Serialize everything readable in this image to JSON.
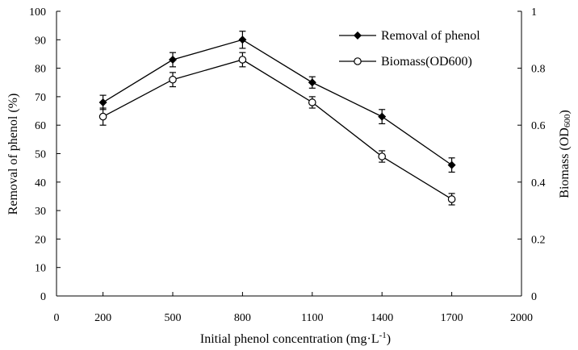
{
  "chart_data": {
    "type": "line",
    "title": "",
    "xlabel": "Initial phenol concentration (mg·L",
    "xlabel_sup": "-1",
    "xlabel_tail": ")",
    "ylabel": "Removal of phenol (%)",
    "y2label": "Biomass (OD",
    "y2label_sub": "600",
    "y2label_tail": ")",
    "xlim": [
      0,
      2000
    ],
    "ylim": [
      0,
      100
    ],
    "y2lim": [
      0,
      1
    ],
    "x_ticks": [
      0,
      200,
      500,
      800,
      1100,
      1400,
      1700,
      2000
    ],
    "y_ticks": [
      0,
      10,
      20,
      30,
      40,
      50,
      60,
      70,
      80,
      90,
      100
    ],
    "y2_ticks": [
      0,
      0.2,
      0.4,
      0.6,
      0.8,
      1
    ],
    "y2_tick_labels": [
      "0",
      "0.2",
      "0.4",
      "0.6",
      "0.8",
      "1"
    ],
    "grid": false,
    "legend_position": "top-right",
    "x": [
      200,
      500,
      800,
      1100,
      1400,
      1700
    ],
    "series": [
      {
        "name": "Removal of phenol",
        "axis": "left",
        "marker": "filled-diamond",
        "values": [
          68,
          83,
          90,
          75,
          63,
          46
        ],
        "errors": [
          2.5,
          2.5,
          3,
          2,
          2.5,
          2.5
        ]
      },
      {
        "name": "Biomass(OD600)",
        "axis": "right",
        "marker": "open-circle",
        "values": [
          0.63,
          0.76,
          0.83,
          0.68,
          0.49,
          0.34
        ],
        "errors": [
          0.03,
          0.025,
          0.025,
          0.02,
          0.02,
          0.02
        ]
      }
    ]
  }
}
